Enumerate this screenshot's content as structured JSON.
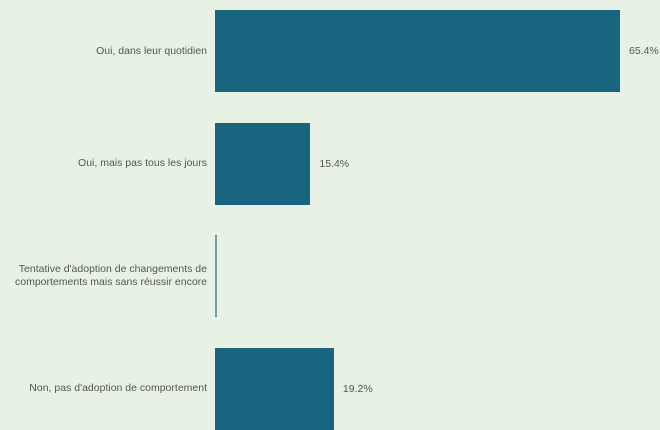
{
  "chart_data": {
    "type": "bar",
    "orientation": "horizontal",
    "categories": [
      "Oui, dans leur quotidien",
      "Oui, mais pas tous les jours",
      "Tentative d'adoption de changements de comportements mais sans réussir encore",
      "Non, pas d'adoption de comportement"
    ],
    "values": [
      65.4,
      15.4,
      0,
      19.2
    ],
    "value_labels": [
      "65.4%",
      "15.4%",
      null,
      "19.2%"
    ],
    "color": "#17657f"
  }
}
